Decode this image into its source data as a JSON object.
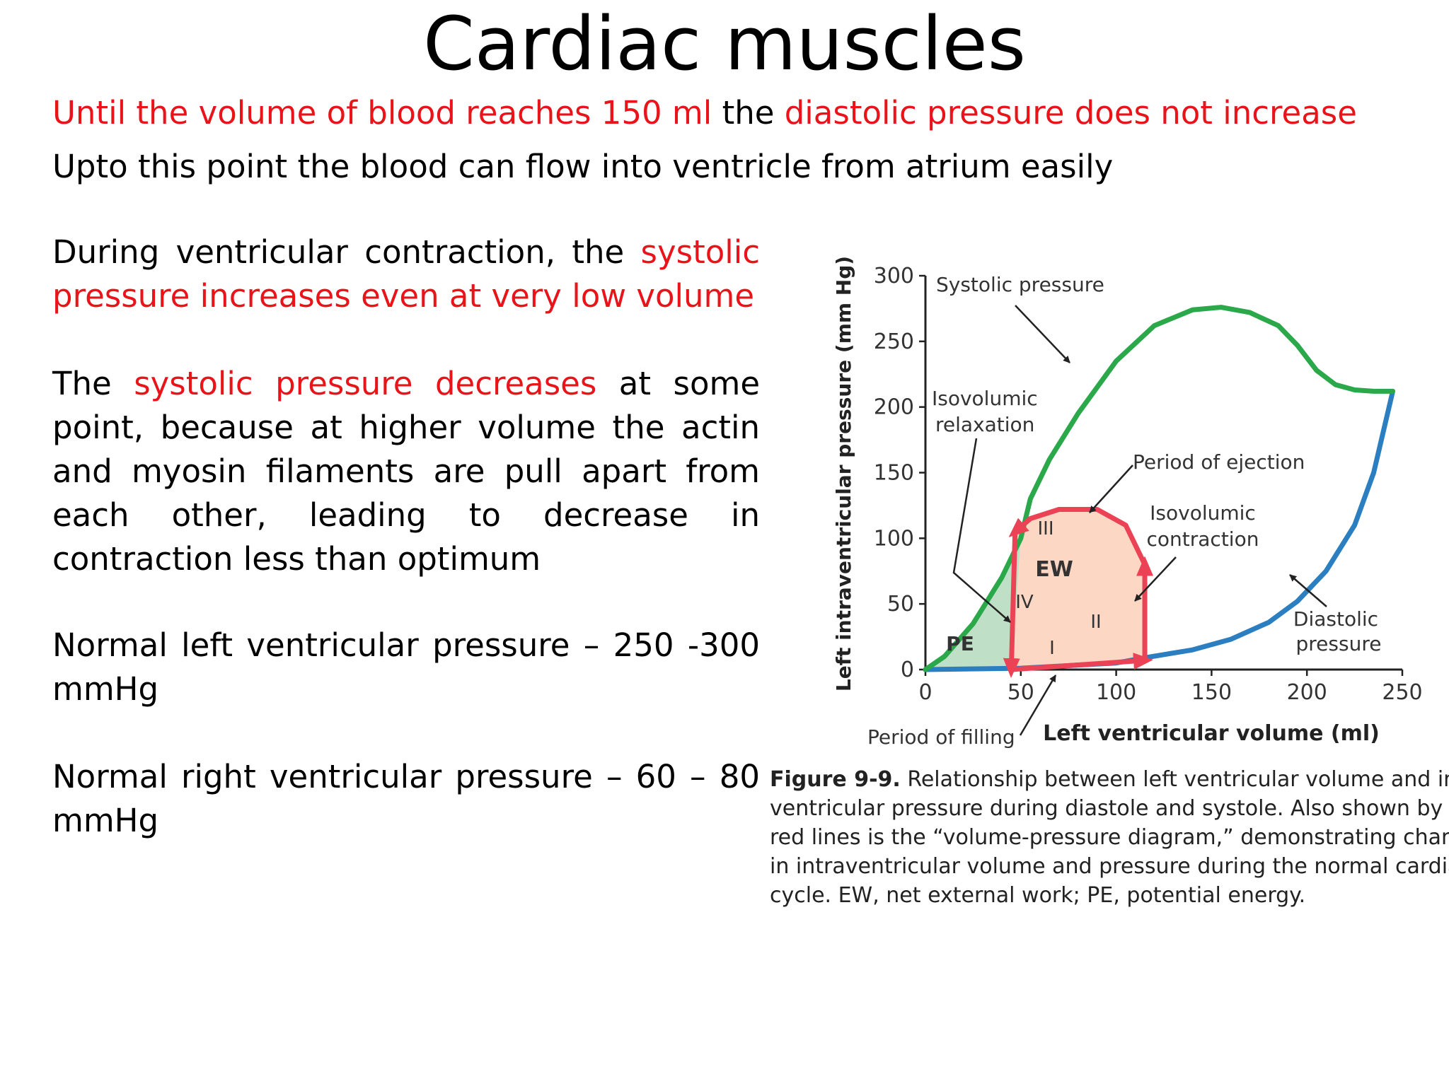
{
  "slide": {
    "title": "Cardiac muscles",
    "line1": {
      "red_a": "Until the volume of blood reaches 150 ml",
      "mid": " the ",
      "red_b": "diastolic pressure does not increase"
    },
    "line2": "Upto this point the blood can flow into ventricle from atrium easily",
    "p1": {
      "text": "During ventricular contraction, the ",
      "red": "systolic pressure increases even at very low volume"
    },
    "p2": {
      "pre": "The ",
      "red": "systolic pressure decreases",
      "text": " at some point, because at higher volume the actin and myosin filaments are pull apart from each other, leading to decrease in contraction less than optimum"
    },
    "p3": "Normal left ventricular pressure – 250 -300 mmHg",
    "p4": "Normal right ventricular pressure – 60 – 80 mmHg"
  },
  "figure": {
    "ylabel": "Left intraventricular pressure (mm Hg)",
    "xlabel": "Left ventricular volume (ml)",
    "labels": {
      "systolic": "Systolic pressure",
      "iso_relax_1": "Isovolumic",
      "iso_relax_2": "relaxation",
      "ejection": "Period of ejection",
      "iso_contr_1": "Isovolumic",
      "iso_contr_2": "contraction",
      "diastolic_1": "Diastolic",
      "diastolic_2": "pressure",
      "filling": "Period of filling",
      "pe": "PE",
      "ew": "EW",
      "I": "I",
      "II": "II",
      "III": "III",
      "IV": "IV"
    },
    "caption": {
      "bold": "Figure 9-9.",
      "l1": " Relationship between left ventricular volume and intra-",
      "l2": "ventricular pressure during diastole and systole. Also shown by the",
      "l3": "red lines is the “volume-pressure diagram,” demonstrating changes",
      "l4": "in intraventricular volume and pressure during the normal cardiac",
      "l5": "cycle. EW, net external work; PE, potential energy."
    }
  },
  "chart_data": {
    "type": "line",
    "xlabel": "Left ventricular volume (ml)",
    "ylabel": "Left intraventricular pressure (mm Hg)",
    "xlim": [
      0,
      250
    ],
    "ylim": [
      0,
      300
    ],
    "x_ticks": [
      0,
      50,
      100,
      150,
      200,
      250
    ],
    "y_ticks": [
      0,
      50,
      100,
      150,
      200,
      250,
      300
    ],
    "grid": false,
    "series": [
      {
        "name": "Systolic pressure",
        "color": "#2aa84a",
        "x": [
          0,
          10,
          25,
          40,
          50,
          55,
          65,
          80,
          100,
          120,
          140,
          155,
          170,
          185,
          195,
          205,
          215,
          225,
          235,
          245
        ],
        "y": [
          0,
          10,
          35,
          70,
          100,
          130,
          160,
          195,
          235,
          262,
          274,
          276,
          272,
          262,
          247,
          228,
          217,
          213,
          212,
          212
        ]
      },
      {
        "name": "Diastolic pressure",
        "color": "#2b7fc1",
        "x": [
          0,
          50,
          100,
          115,
          140,
          160,
          180,
          195,
          210,
          225,
          235,
          245
        ],
        "y": [
          0,
          1,
          5,
          9,
          15,
          23,
          36,
          52,
          75,
          110,
          150,
          212
        ]
      },
      {
        "name": "Volume-pressure diagram",
        "color": "#ec4255",
        "x": [
          45,
          115,
          115,
          105,
          90,
          70,
          55,
          47,
          45
        ],
        "y": [
          0,
          7,
          80,
          110,
          122,
          122,
          115,
          105,
          0
        ]
      }
    ]
  }
}
